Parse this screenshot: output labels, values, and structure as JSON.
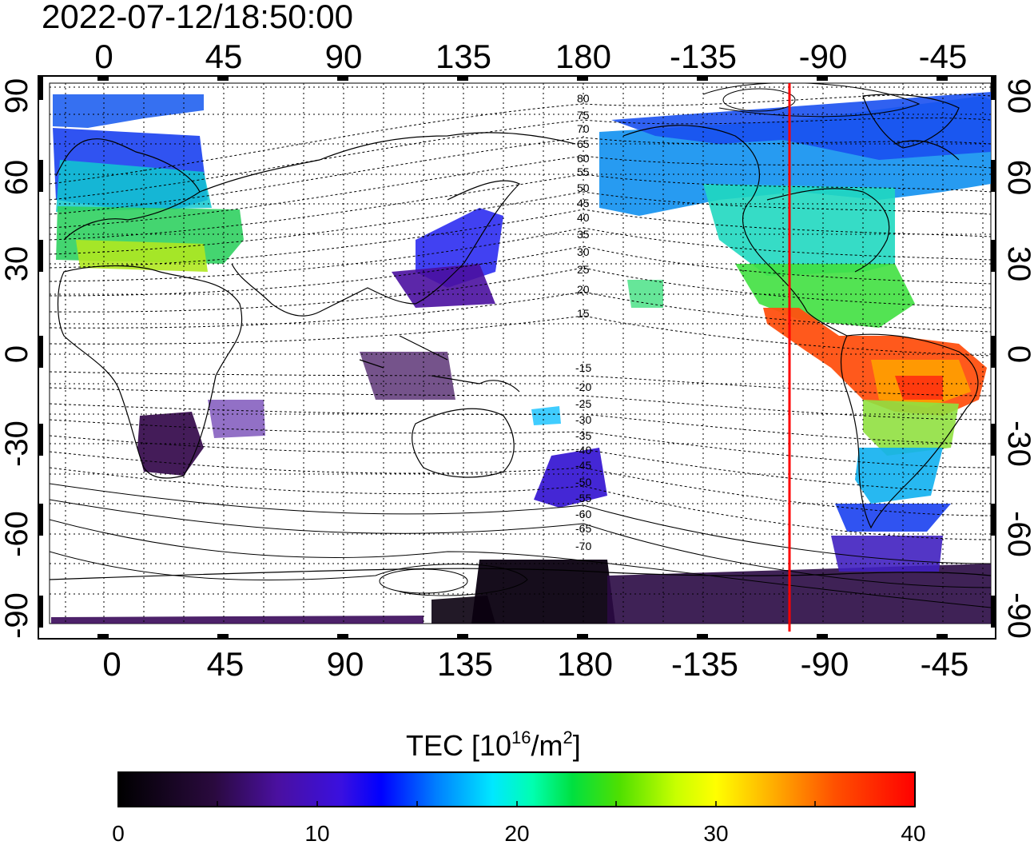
{
  "title": "2022-07-12/18:50:00",
  "map": {
    "top_lon_labels": [
      "0",
      "45",
      "90",
      "135",
      "180",
      "-135",
      "-90",
      "-45"
    ],
    "bottom_lon_labels": [
      "0",
      "45",
      "90",
      "135",
      "180",
      "-135",
      "-90",
      "-45"
    ],
    "left_lat_labels": [
      "90",
      "60",
      "30",
      "0",
      "-30",
      "-60",
      "-90"
    ],
    "right_lat_labels": [
      "90",
      "60",
      "30",
      "0",
      "-30",
      "-60",
      "-90"
    ],
    "north_contour_labels": [
      "80",
      "75",
      "70",
      "65",
      "60",
      "55",
      "50",
      "45",
      "40",
      "35",
      "30",
      "25",
      "20",
      "15"
    ],
    "south_contour_labels": [
      "-15",
      "-20",
      "-25",
      "-30",
      "-35",
      "-40",
      "-45",
      "-50",
      "-55",
      "-60",
      "-65",
      "-70"
    ],
    "terminator_color": "#ff0000"
  },
  "colorbar": {
    "label_main": "TEC  [10",
    "label_exp1": "16",
    "label_mid": "/m",
    "label_exp2": "2",
    "label_end": "]",
    "ticks": [
      "0",
      "10",
      "20",
      "30",
      "40"
    ],
    "colors": [
      "#000000",
      "#3a0a5a",
      "#5a10b4",
      "#0000ff",
      "#00a0ff",
      "#00ffff",
      "#00ff60",
      "#00c800",
      "#a0ff00",
      "#ffff00",
      "#ffa000",
      "#ff4000",
      "#ff0000"
    ]
  }
}
